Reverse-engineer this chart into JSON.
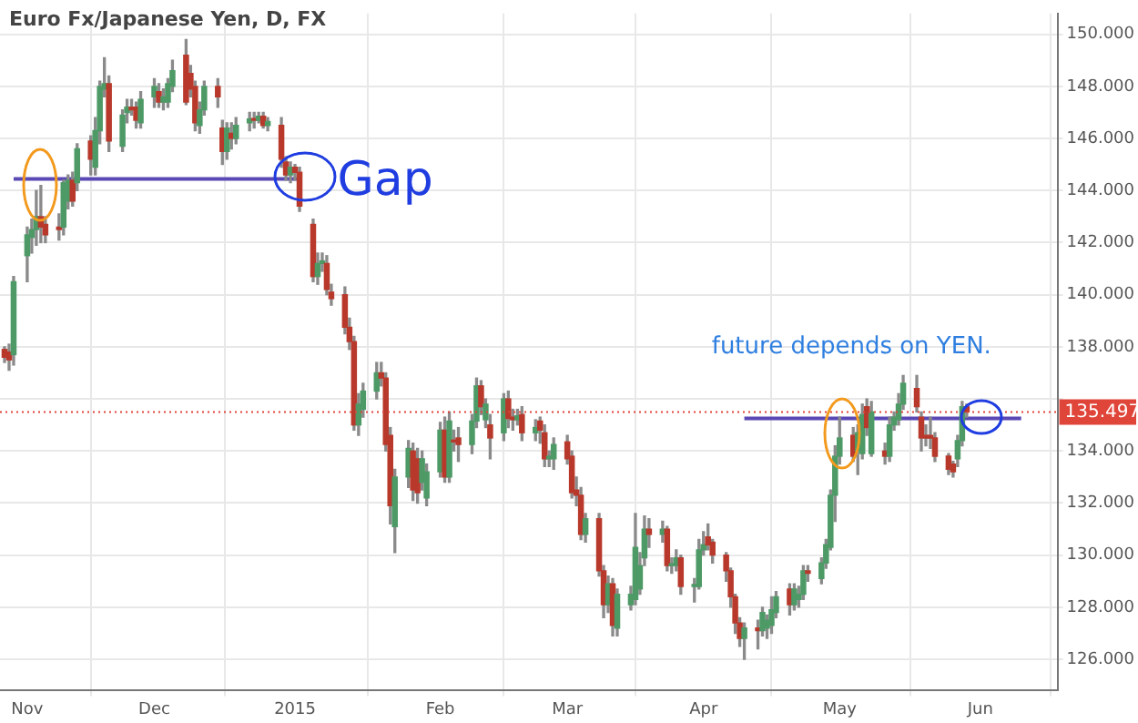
{
  "chart_data": {
    "type": "candlestick",
    "title": "Euro Fx/Japanese Yen, D, FX",
    "x": [
      "2014-10-29",
      "2014-10-30",
      "2014-10-31",
      "2014-11-03",
      "2014-11-04",
      "2014-11-05",
      "2014-11-06",
      "2014-11-07",
      "2014-11-10",
      "2014-11-11",
      "2014-11-12",
      "2014-11-13",
      "2014-11-14",
      "2014-11-17",
      "2014-11-18",
      "2014-11-19",
      "2014-11-20",
      "2014-11-21",
      "2014-11-24",
      "2014-11-25",
      "2014-11-26",
      "2014-11-27",
      "2014-11-28",
      "2014-12-01",
      "2014-12-02",
      "2014-12-03",
      "2014-12-04",
      "2014-12-05",
      "2014-12-08",
      "2014-12-09",
      "2014-12-10",
      "2014-12-11",
      "2014-12-12",
      "2014-12-15",
      "2014-12-16",
      "2014-12-17",
      "2014-12-18",
      "2014-12-19",
      "2014-12-22",
      "2014-12-23",
      "2014-12-24",
      "2014-12-25",
      "2014-12-26",
      "2014-12-29",
      "2014-12-30",
      "2014-12-31",
      "2015-01-01",
      "2015-01-02",
      "2015-01-05",
      "2015-01-06",
      "2015-01-07",
      "2015-01-08",
      "2015-01-09",
      "2015-01-12",
      "2015-01-13",
      "2015-01-14",
      "2015-01-15",
      "2015-01-16",
      "2015-01-19",
      "2015-01-20",
      "2015-01-21",
      "2015-01-22",
      "2015-01-23",
      "2015-01-26",
      "2015-01-27",
      "2015-01-28",
      "2015-01-29",
      "2015-01-30",
      "2015-02-02",
      "2015-02-03",
      "2015-02-04",
      "2015-02-05",
      "2015-02-06",
      "2015-02-09",
      "2015-02-10",
      "2015-02-11",
      "2015-02-12",
      "2015-02-13",
      "2015-02-16",
      "2015-02-17",
      "2015-02-18",
      "2015-02-19",
      "2015-02-20",
      "2015-02-23",
      "2015-02-24",
      "2015-02-25",
      "2015-02-26",
      "2015-02-27",
      "2015-03-02",
      "2015-03-03",
      "2015-03-04",
      "2015-03-05",
      "2015-03-06",
      "2015-03-09",
      "2015-03-10",
      "2015-03-11",
      "2015-03-12",
      "2015-03-13",
      "2015-03-16",
      "2015-03-17",
      "2015-03-18",
      "2015-03-19",
      "2015-03-20",
      "2015-03-23",
      "2015-03-24",
      "2015-03-25",
      "2015-03-26",
      "2015-03-27",
      "2015-03-30",
      "2015-03-31",
      "2015-04-01",
      "2015-04-02",
      "2015-04-03",
      "2015-04-06",
      "2015-04-07",
      "2015-04-08",
      "2015-04-09",
      "2015-04-10",
      "2015-04-13",
      "2015-04-14",
      "2015-04-15",
      "2015-04-16",
      "2015-04-17",
      "2015-04-20",
      "2015-04-21",
      "2015-04-22",
      "2015-04-23",
      "2015-04-24",
      "2015-04-27",
      "2015-04-28",
      "2015-04-29",
      "2015-04-30",
      "2015-05-01",
      "2015-05-04",
      "2015-05-05",
      "2015-05-06",
      "2015-05-07",
      "2015-05-08",
      "2015-05-11",
      "2015-05-12",
      "2015-05-13",
      "2015-05-14",
      "2015-05-15",
      "2015-05-18",
      "2015-05-19",
      "2015-05-20",
      "2015-05-21",
      "2015-05-22",
      "2015-05-25",
      "2015-05-26",
      "2015-05-27",
      "2015-05-28",
      "2015-05-29"
    ],
    "ohlc": [
      [
        137.9,
        138.0,
        137.4,
        137.6
      ],
      [
        137.8,
        138.1,
        137.1,
        137.5
      ],
      [
        137.7,
        140.7,
        137.3,
        140.5
      ],
      [
        141.5,
        142.6,
        140.5,
        142.3
      ],
      [
        142.2,
        142.9,
        141.6,
        142.5
      ],
      [
        142.5,
        144.0,
        141.9,
        143.0
      ],
      [
        143.0,
        144.2,
        142.0,
        142.6
      ],
      [
        142.7,
        143.0,
        142.0,
        142.3
      ],
      [
        142.6,
        143.1,
        142.1,
        142.5
      ],
      [
        142.6,
        144.4,
        142.3,
        144.3
      ],
      [
        143.6,
        144.6,
        143.3,
        144.4
      ],
      [
        144.4,
        144.7,
        143.4,
        143.6
      ],
      [
        144.3,
        145.8,
        144.0,
        145.6
      ],
      [
        145.9,
        146.1,
        144.6,
        145.2
      ],
      [
        144.9,
        146.8,
        144.6,
        146.3
      ],
      [
        146.3,
        148.2,
        145.8,
        148.0
      ],
      [
        147.9,
        149.1,
        147.6,
        148.1
      ],
      [
        148.1,
        148.4,
        145.5,
        145.9
      ],
      [
        145.7,
        147.1,
        145.5,
        146.9
      ],
      [
        147.0,
        147.5,
        146.6,
        147.2
      ],
      [
        147.2,
        147.5,
        146.9,
        147.1
      ],
      [
        147.2,
        147.4,
        146.4,
        146.7
      ],
      [
        146.6,
        147.8,
        146.4,
        147.5
      ],
      [
        147.6,
        148.3,
        147.2,
        148.0
      ],
      [
        147.8,
        148.1,
        147.2,
        147.4
      ],
      [
        147.4,
        147.9,
        147.1,
        147.6
      ],
      [
        147.4,
        148.3,
        147.2,
        148.1
      ],
      [
        148.0,
        149.0,
        147.8,
        148.6
      ],
      [
        149.2,
        149.8,
        147.3,
        147.4
      ],
      [
        148.5,
        148.8,
        147.6,
        147.9
      ],
      [
        148.0,
        148.2,
        146.3,
        146.6
      ],
      [
        146.5,
        147.4,
        146.2,
        147.1
      ],
      [
        147.1,
        148.2,
        146.9,
        148.0
      ],
      [
        148.0,
        148.3,
        147.2,
        147.6
      ],
      [
        146.4,
        146.7,
        145.0,
        145.5
      ],
      [
        145.5,
        146.6,
        145.2,
        146.4
      ],
      [
        146.2,
        146.6,
        145.6,
        146.0
      ],
      [
        146.0,
        146.8,
        145.8,
        146.5
      ],
      [
        146.6,
        147.0,
        146.3,
        146.75
      ],
      [
        146.75,
        147.0,
        146.4,
        146.7
      ],
      [
        146.7,
        147.0,
        146.6,
        146.85
      ],
      [
        146.85,
        147.0,
        146.4,
        146.5
      ],
      [
        146.5,
        146.8,
        146.3,
        146.65
      ],
      [
        146.5,
        146.8,
        144.9,
        145.2
      ],
      [
        145.1,
        145.3,
        144.4,
        144.6
      ],
      [
        144.6,
        145.1,
        144.3,
        144.9
      ],
      [
        144.9,
        145.0,
        144.4,
        144.7
      ],
      [
        144.7,
        144.9,
        143.2,
        143.4
      ],
      [
        142.7,
        142.9,
        140.5,
        140.7
      ],
      [
        140.7,
        141.6,
        140.4,
        141.2
      ],
      [
        141.2,
        141.6,
        140.9,
        141.3
      ],
      [
        141.2,
        141.5,
        140.0,
        140.2
      ],
      [
        140.1,
        140.4,
        139.6,
        139.85
      ],
      [
        140.0,
        140.3,
        138.5,
        138.75
      ],
      [
        138.75,
        139.1,
        137.9,
        138.2
      ],
      [
        138.2,
        138.4,
        134.8,
        135.0
      ],
      [
        135.0,
        136.2,
        134.6,
        135.8
      ],
      [
        135.6,
        136.6,
        135.3,
        136.3
      ],
      [
        136.3,
        137.4,
        136.0,
        137.0
      ],
      [
        137.0,
        137.4,
        136.5,
        136.8
      ],
      [
        136.8,
        137.0,
        134.0,
        134.25
      ],
      [
        134.6,
        134.9,
        131.2,
        131.9
      ],
      [
        131.1,
        133.3,
        130.1,
        133.0
      ],
      [
        133.0,
        134.4,
        132.6,
        134.1
      ],
      [
        134.0,
        134.3,
        132.1,
        132.5
      ],
      [
        133.7,
        134.1,
        132.0,
        132.4
      ],
      [
        132.8,
        134.0,
        132.5,
        133.7
      ],
      [
        132.2,
        133.5,
        131.9,
        133.2
      ],
      [
        133.2,
        135.1,
        133.0,
        134.8
      ],
      [
        134.8,
        135.3,
        132.8,
        133.0
      ],
      [
        133.0,
        135.5,
        132.8,
        135.15
      ],
      [
        134.4,
        134.8,
        134.0,
        134.35
      ],
      [
        134.5,
        134.9,
        133.6,
        134.25
      ],
      [
        134.25,
        135.4,
        133.9,
        135.15
      ],
      [
        135.15,
        136.8,
        134.9,
        136.5
      ],
      [
        136.5,
        136.7,
        135.4,
        135.7
      ],
      [
        135.2,
        136.0,
        134.9,
        135.8
      ],
      [
        135.0,
        135.4,
        133.7,
        134.5
      ],
      [
        134.7,
        136.2,
        134.4,
        136.0
      ],
      [
        136.0,
        136.3,
        134.9,
        135.25
      ],
      [
        135.3,
        135.6,
        134.8,
        135.2
      ],
      [
        135.2,
        135.6,
        135.0,
        135.35
      ],
      [
        135.4,
        135.7,
        134.4,
        134.7
      ],
      [
        134.7,
        135.2,
        134.4,
        134.9
      ],
      [
        135.15,
        135.3,
        134.3,
        134.8
      ],
      [
        134.7,
        135.0,
        133.4,
        133.7
      ],
      [
        133.7,
        134.0,
        133.4,
        133.8
      ],
      [
        133.7,
        134.5,
        133.3,
        134.25
      ],
      [
        134.35,
        134.6,
        133.5,
        133.7
      ],
      [
        133.8,
        134.0,
        132.2,
        132.4
      ],
      [
        132.5,
        133.0,
        131.9,
        132.3
      ],
      [
        132.3,
        132.6,
        130.6,
        130.8
      ],
      [
        130.8,
        131.6,
        130.5,
        131.4
      ],
      [
        131.4,
        131.6,
        129.2,
        129.4
      ],
      [
        129.4,
        129.6,
        127.6,
        128.1
      ],
      [
        128.1,
        129.2,
        127.8,
        128.9
      ],
      [
        128.9,
        129.1,
        126.9,
        127.3
      ],
      [
        127.2,
        128.7,
        126.9,
        128.5
      ],
      [
        128.1,
        128.8,
        127.9,
        128.5
      ],
      [
        128.3,
        131.6,
        128.1,
        130.3
      ],
      [
        128.7,
        130.1,
        128.5,
        129.6
      ],
      [
        129.9,
        131.5,
        129.6,
        131.0
      ],
      [
        131.0,
        131.4,
        130.3,
        130.8
      ],
      [
        130.8,
        131.3,
        130.5,
        131.0
      ],
      [
        131.0,
        131.1,
        129.4,
        129.6
      ],
      [
        129.6,
        129.9,
        129.3,
        129.6
      ],
      [
        129.6,
        130.2,
        129.4,
        129.9
      ],
      [
        129.9,
        130.0,
        128.5,
        128.8
      ],
      [
        128.8,
        129.1,
        128.2,
        128.8
      ],
      [
        128.8,
        130.6,
        128.7,
        130.2
      ],
      [
        130.2,
        130.9,
        130.0,
        130.4
      ],
      [
        130.7,
        131.2,
        130.2,
        130.4
      ],
      [
        130.5,
        130.6,
        129.7,
        130.0
      ],
      [
        130.0,
        130.1,
        129.0,
        129.4
      ],
      [
        129.4,
        129.5,
        128.0,
        128.4
      ],
      [
        128.4,
        128.5,
        127.0,
        127.4
      ],
      [
        127.4,
        127.6,
        126.5,
        126.8
      ],
      [
        126.8,
        127.4,
        126.0,
        127.2
      ],
      [
        127.2,
        127.5,
        126.4,
        127.1
      ],
      [
        127.1,
        128.0,
        126.9,
        127.8
      ],
      [
        127.2,
        127.7,
        126.8,
        127.5
      ],
      [
        127.3,
        128.4,
        127.0,
        127.9
      ],
      [
        127.8,
        128.6,
        127.6,
        128.4
      ],
      [
        128.7,
        128.9,
        127.7,
        128.1
      ],
      [
        128.1,
        128.9,
        127.9,
        128.7
      ],
      [
        128.3,
        128.8,
        128.0,
        128.5
      ],
      [
        128.5,
        129.6,
        128.3,
        129.4
      ],
      [
        129.4,
        129.6,
        129.0,
        129.3
      ],
      [
        129.1,
        129.9,
        128.9,
        129.7
      ],
      [
        129.7,
        130.6,
        129.5,
        130.4
      ],
      [
        130.3,
        132.5,
        130.2,
        132.3
      ],
      [
        132.3,
        134.2,
        131.3,
        133.8
      ],
      [
        133.8,
        135.3,
        133.5,
        134.5
      ],
      [
        134.6,
        134.9,
        133.6,
        133.8
      ],
      [
        134.0,
        135.0,
        133.1,
        134.7
      ],
      [
        133.9,
        135.8,
        133.7,
        135.4
      ],
      [
        135.7,
        136.0,
        134.6,
        134.9
      ],
      [
        133.9,
        135.9,
        133.8,
        135.5
      ],
      [
        134.0,
        134.3,
        133.5,
        133.8
      ],
      [
        133.8,
        135.3,
        133.6,
        135.0
      ],
      [
        135.0,
        135.5,
        134.8,
        135.3
      ],
      [
        135.2,
        136.2,
        135.0,
        135.8
      ],
      [
        135.8,
        136.9,
        135.6,
        136.6
      ],
      [
        136.4,
        136.9,
        135.5,
        135.7
      ],
      [
        135.3,
        135.5,
        134.0,
        134.5
      ],
      [
        134.6,
        135.0,
        134.2,
        134.5
      ],
      [
        134.6,
        135.3,
        134.1,
        134.5
      ],
      [
        134.5,
        134.7,
        133.6,
        133.8
      ],
      [
        133.8,
        133.9,
        133.1,
        133.3
      ],
      [
        133.5,
        133.6,
        133.0,
        133.2
      ],
      [
        133.7,
        134.6,
        133.4,
        134.4
      ],
      [
        134.4,
        135.9,
        134.2,
        135.7
      ],
      [
        135.7,
        135.8,
        135.3,
        135.5
      ]
    ],
    "series": [
      {
        "type": "line",
        "x": [
          "2014-10-31",
          "2015-01-02"
        ],
        "values": [
          144.45,
          144.45
        ],
        "color": "#5a48b4"
      },
      {
        "type": "line",
        "x": [
          "2015-04-10",
          "2015-06-10"
        ],
        "values": [
          135.25,
          135.25
        ],
        "color": "#5a48b4"
      }
    ],
    "xlim": [
      "2014-10-28",
      "2015-06-18"
    ],
    "xticks": [
      {
        "value": "2014-11-03",
        "label": "Nov"
      },
      {
        "value": "2014-12-01",
        "label": "Dec"
      },
      {
        "value": "2015-01-01",
        "label": "2015"
      },
      {
        "value": "2015-02-02",
        "label": "Feb"
      },
      {
        "value": "2015-03-02",
        "label": "Mar"
      },
      {
        "value": "2015-04-01",
        "label": "Apr"
      },
      {
        "value": "2015-05-01",
        "label": "May"
      },
      {
        "value": "2015-06-01",
        "label": "Jun"
      }
    ],
    "ylim": [
      124.8,
      150.8
    ],
    "yticks": [
      {
        "value": 126,
        "label": "126.000"
      },
      {
        "value": 128,
        "label": "128.000"
      },
      {
        "value": 130,
        "label": "130.000"
      },
      {
        "value": 132,
        "label": "132.000"
      },
      {
        "value": 134,
        "label": "134.000"
      },
      {
        "value": 136,
        "label": null
      },
      {
        "value": 138,
        "label": "138.000"
      },
      {
        "value": 140,
        "label": "140.000"
      },
      {
        "value": 142,
        "label": "142.000"
      },
      {
        "value": 144,
        "label": "144.000"
      },
      {
        "value": 146,
        "label": "146.000"
      },
      {
        "value": 148,
        "label": "148.000"
      },
      {
        "value": 150,
        "label": "150.000"
      }
    ],
    "ref_lines": [
      {
        "axis": "y",
        "value": 135.497,
        "label": "135.497",
        "color": "#e0453a",
        "line_style": "dotted"
      }
    ],
    "annotations": [
      "Gap",
      "future depends on YEN."
    ],
    "grid": true
  }
}
